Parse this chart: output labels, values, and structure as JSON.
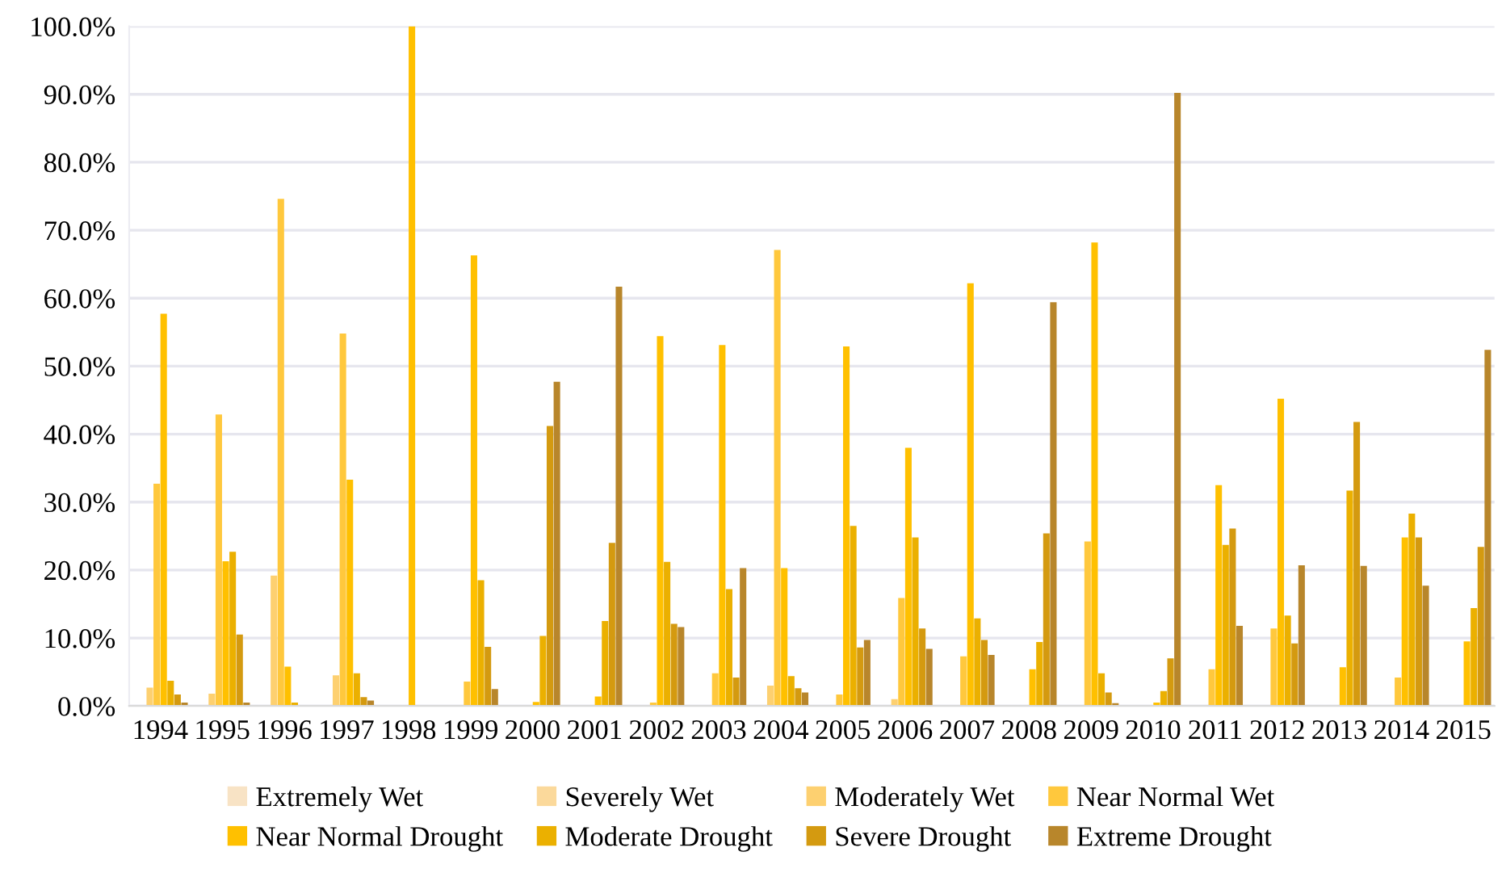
{
  "chart_data": {
    "type": "bar",
    "categories": [
      "1994",
      "1995",
      "1996",
      "1997",
      "1998",
      "1999",
      "2000",
      "2001",
      "2002",
      "2003",
      "2004",
      "2005",
      "2006",
      "2007",
      "2008",
      "2009",
      "2010",
      "2011",
      "2012",
      "2013",
      "2014",
      "2015"
    ],
    "series": [
      {
        "name": "Extremely Wet",
        "color": "#f8e3c5",
        "values": [
          0,
          0,
          0,
          0,
          0,
          0,
          0,
          0,
          0,
          0,
          0,
          0,
          0,
          0,
          0,
          0,
          0,
          0,
          0,
          0,
          0,
          0
        ]
      },
      {
        "name": "Severely Wet",
        "color": "#fbd99b",
        "values": [
          0,
          0,
          0,
          0,
          0,
          0,
          0,
          0,
          0,
          0,
          0,
          0,
          0,
          0,
          0,
          0,
          0,
          0,
          0,
          0,
          0,
          0
        ]
      },
      {
        "name": "Moderately Wet",
        "color": "#fdd070",
        "values": [
          2.7,
          1.8,
          19.2,
          4.5,
          0,
          0,
          0,
          0,
          0,
          0,
          3.0,
          0,
          1.0,
          0,
          0,
          0,
          0,
          0,
          0,
          0,
          0,
          0
        ]
      },
      {
        "name": "Near Normal Wet",
        "color": "#ffc83d",
        "values": [
          32.7,
          42.9,
          74.6,
          54.8,
          0,
          3.6,
          0,
          0,
          0.5,
          4.8,
          67.1,
          1.7,
          15.9,
          7.3,
          0,
          24.2,
          0,
          5.4,
          11.4,
          0,
          4.2,
          0
        ]
      },
      {
        "name": "Near Normal Drought",
        "color": "#ffc000",
        "values": [
          57.7,
          21.3,
          5.8,
          33.3,
          100,
          66.3,
          0.6,
          1.4,
          54.4,
          53.1,
          20.3,
          52.9,
          38.0,
          62.2,
          5.4,
          68.2,
          0.5,
          32.5,
          45.2,
          5.7,
          24.8,
          9.5
        ]
      },
      {
        "name": "Moderate Drought",
        "color": "#ebb000",
        "values": [
          3.7,
          22.7,
          0.5,
          4.8,
          0,
          18.5,
          10.3,
          12.5,
          21.2,
          17.2,
          4.4,
          26.5,
          24.8,
          12.9,
          9.4,
          4.8,
          2.2,
          23.7,
          13.3,
          31.7,
          28.3,
          14.4
        ]
      },
      {
        "name": "Severe Drought",
        "color": "#d49a10",
        "values": [
          1.7,
          10.5,
          0,
          1.3,
          0,
          8.7,
          41.2,
          24.0,
          12.1,
          4.2,
          2.6,
          8.6,
          11.4,
          9.7,
          25.4,
          2.0,
          7.0,
          26.1,
          9.2,
          41.8,
          24.8,
          23.4
        ]
      },
      {
        "name": "Extreme Drought",
        "color": "#b8862b",
        "values": [
          0.5,
          0.5,
          0,
          0.8,
          0,
          2.5,
          47.7,
          61.7,
          11.6,
          20.3,
          2.0,
          9.7,
          8.4,
          7.5,
          59.4,
          0.4,
          90.2,
          11.8,
          20.7,
          20.6,
          17.7,
          52.4
        ]
      }
    ],
    "ylim": [
      0,
      100
    ],
    "yticks": [
      {
        "value": 0,
        "label": "0.0%"
      },
      {
        "value": 10,
        "label": "10.0%"
      },
      {
        "value": 20,
        "label": "20.0%"
      },
      {
        "value": 30,
        "label": "30.0%"
      },
      {
        "value": 40,
        "label": "40.0%"
      },
      {
        "value": 50,
        "label": "50.0%"
      },
      {
        "value": 60,
        "label": "60.0%"
      },
      {
        "value": 70,
        "label": "70.0%"
      },
      {
        "value": 80,
        "label": "80.0%"
      },
      {
        "value": 90,
        "label": "90.0%"
      },
      {
        "value": 100,
        "label": "100.0%"
      }
    ],
    "grid": "y",
    "legend": "bottom"
  }
}
